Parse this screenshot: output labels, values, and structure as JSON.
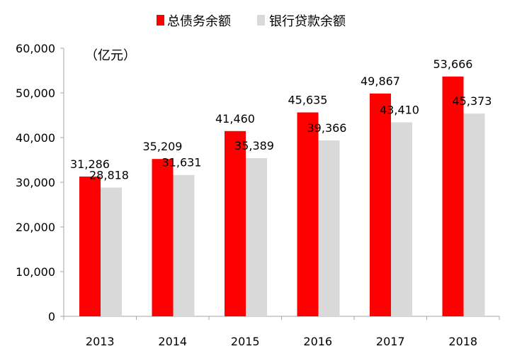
{
  "chart_data": {
    "type": "bar",
    "unit_label": "（亿元）",
    "categories": [
      "2013",
      "2014",
      "2015",
      "2016",
      "2017",
      "2018"
    ],
    "series": [
      {
        "name": "总债务余额",
        "color": "#ff0000",
        "values": [
          31286,
          35209,
          41460,
          45635,
          49867,
          53666
        ],
        "value_labels": [
          "31,286",
          "35,209",
          "41,460",
          "45,635",
          "49,867",
          "53,666"
        ]
      },
      {
        "name": "银行贷款余额",
        "color": "#d9d9d9",
        "values": [
          28818,
          31631,
          35389,
          39366,
          43410,
          45373
        ],
        "value_labels": [
          "28,818",
          "31,631",
          "35,389",
          "39,366",
          "43,410",
          "45,373"
        ]
      }
    ],
    "ylim": [
      0,
      60000
    ],
    "yticks": [
      0,
      10000,
      20000,
      30000,
      40000,
      50000,
      60000
    ],
    "ytick_labels": [
      "0",
      "10,000",
      "20,000",
      "30,000",
      "40,000",
      "50,000",
      "60,000"
    ],
    "legend_position": "top-center",
    "grid": false
  }
}
